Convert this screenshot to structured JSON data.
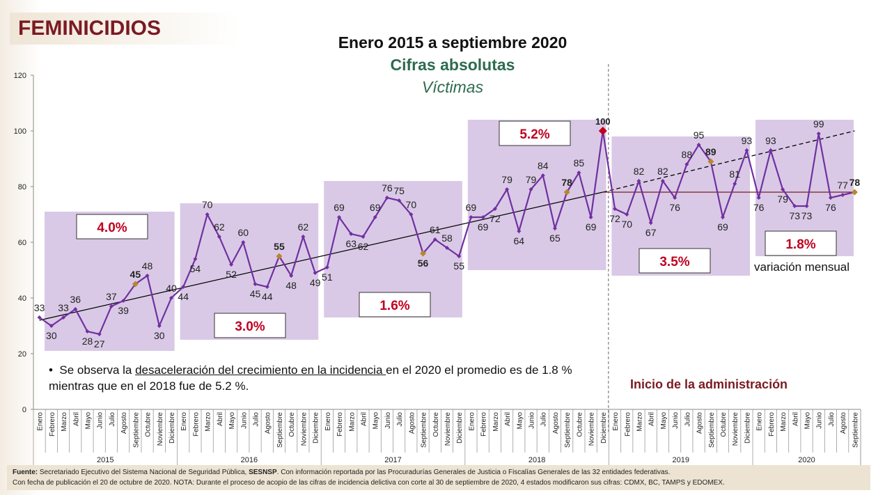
{
  "header": {
    "section": "FEMINICIDIOS"
  },
  "chart_data": {
    "type": "line",
    "title": "Enero 2015 a septiembre 2020",
    "subtitle": "Cifras absolutas",
    "subtitle2": "Víctimas",
    "ylim": [
      0,
      120
    ],
    "yticks": [
      0,
      20,
      40,
      60,
      80,
      100,
      120
    ],
    "months": [
      "Enero",
      "Febrero",
      "Marzo",
      "Abril",
      "Mayo",
      "Junio",
      "Julio",
      "Agosto",
      "Septiembre",
      "Octubre",
      "Noviembre",
      "Diciembre"
    ],
    "years": [
      {
        "year": "2015",
        "values": [
          33,
          30,
          33,
          36,
          28,
          27,
          37,
          39,
          45,
          48,
          30,
          40
        ],
        "growth": "4.0%"
      },
      {
        "year": "2016",
        "values": [
          44,
          54,
          70,
          62,
          52,
          60,
          45,
          44,
          55,
          48,
          62,
          49
        ],
        "growth": "3.0%"
      },
      {
        "year": "2017",
        "values": [
          51,
          69,
          63,
          62,
          69,
          76,
          75,
          70,
          56,
          61,
          58,
          55
        ],
        "growth": "1.6%"
      },
      {
        "year": "2018",
        "values": [
          69,
          69,
          72,
          79,
          64,
          79,
          84,
          65,
          78,
          85,
          69,
          100
        ],
        "growth": "5.2%"
      },
      {
        "year": "2019",
        "values": [
          72,
          70,
          82,
          67,
          82,
          76,
          88,
          95,
          89,
          69,
          81,
          93
        ],
        "growth": "3.5%"
      },
      {
        "year": "2020",
        "values": [
          76,
          93,
          79,
          73,
          73,
          99,
          76,
          77,
          78
        ],
        "growth": "1.8%"
      }
    ],
    "trend_solid": {
      "from": [
        0,
        32
      ],
      "to": [
        47,
        78
      ]
    },
    "trend_dashed": {
      "from": [
        47,
        78
      ],
      "to": [
        68,
        100
      ]
    },
    "reference_line": {
      "value": 78,
      "from": 47,
      "to": 68
    },
    "series_color": "#7030a0",
    "highlight_color": "#b8862c",
    "peak_color": "#c00020",
    "annotations": {
      "start_admin": "Inicio de la administración",
      "monthly_variation": "variación mensual"
    }
  },
  "note": {
    "prefix": "Se observa la ",
    "underlined": "desaceleración del crecimiento en la incidencia ",
    "suffix": "en el 2020 el promedio es de 1.8 % mientras que en el 2018 fue de 5.2 %."
  },
  "footer": {
    "source_label": "Fuente:",
    "source_a": " Secretariado Ejecutivo del Sistema Nacional de Seguridad Pública, ",
    "source_b": "SESNSP",
    "source_c": ". Con información reportada por las Procuradurías Generales de Justicia o Fiscalías Generales de las 32 entidades federativas.",
    "line2": "Con fecha de publicación el 20 de octubre de 2020. NOTA: Durante el proceso de acopio de las cifras de incidencia delictiva con corte al 30 de septiembre de 2020, 4 estados modificaron sus cifras: CDMX, BC, TAMPS y EDOMEX."
  }
}
